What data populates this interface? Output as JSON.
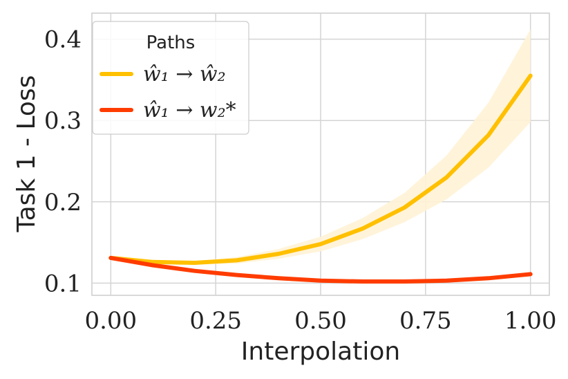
{
  "chart_data": {
    "type": "line",
    "xlabel": "Interpolation",
    "ylabel": "Task 1 - Loss",
    "xlim": [
      -0.045,
      1.045
    ],
    "ylim": [
      0.085,
      0.432
    ],
    "x_ticks": [
      0.0,
      0.25,
      0.5,
      0.75,
      1.0
    ],
    "x_tick_labels": [
      "0.00",
      "0.25",
      "0.50",
      "0.75",
      "1.00"
    ],
    "y_ticks": [
      0.1,
      0.2,
      0.3,
      0.4
    ],
    "y_tick_labels": [
      "0.1",
      "0.2",
      "0.3",
      "0.4"
    ],
    "grid": true,
    "legend": {
      "title": "Paths",
      "placement": "top-left"
    },
    "x": [
      0.0,
      0.1,
      0.2,
      0.3,
      0.4,
      0.5,
      0.6,
      0.7,
      0.8,
      0.9,
      1.0
    ],
    "series": [
      {
        "name": "ŵ₁ → ŵ₂",
        "color": "#FFC000",
        "values": [
          0.131,
          0.126,
          0.125,
          0.128,
          0.136,
          0.148,
          0.167,
          0.193,
          0.23,
          0.282,
          0.355
        ],
        "band_lower": [
          0.131,
          0.125,
          0.123,
          0.124,
          0.13,
          0.139,
          0.154,
          0.175,
          0.203,
          0.242,
          0.298
        ],
        "band_upper": [
          0.131,
          0.127,
          0.127,
          0.132,
          0.142,
          0.157,
          0.18,
          0.211,
          0.257,
          0.322,
          0.412
        ],
        "band_color": "#FFF3D6"
      },
      {
        "name": "ŵ₁ → w₂*",
        "color": "#FF3C00",
        "values": [
          0.131,
          0.122,
          0.115,
          0.11,
          0.106,
          0.103,
          0.102,
          0.102,
          0.103,
          0.106,
          0.111
        ]
      }
    ]
  }
}
